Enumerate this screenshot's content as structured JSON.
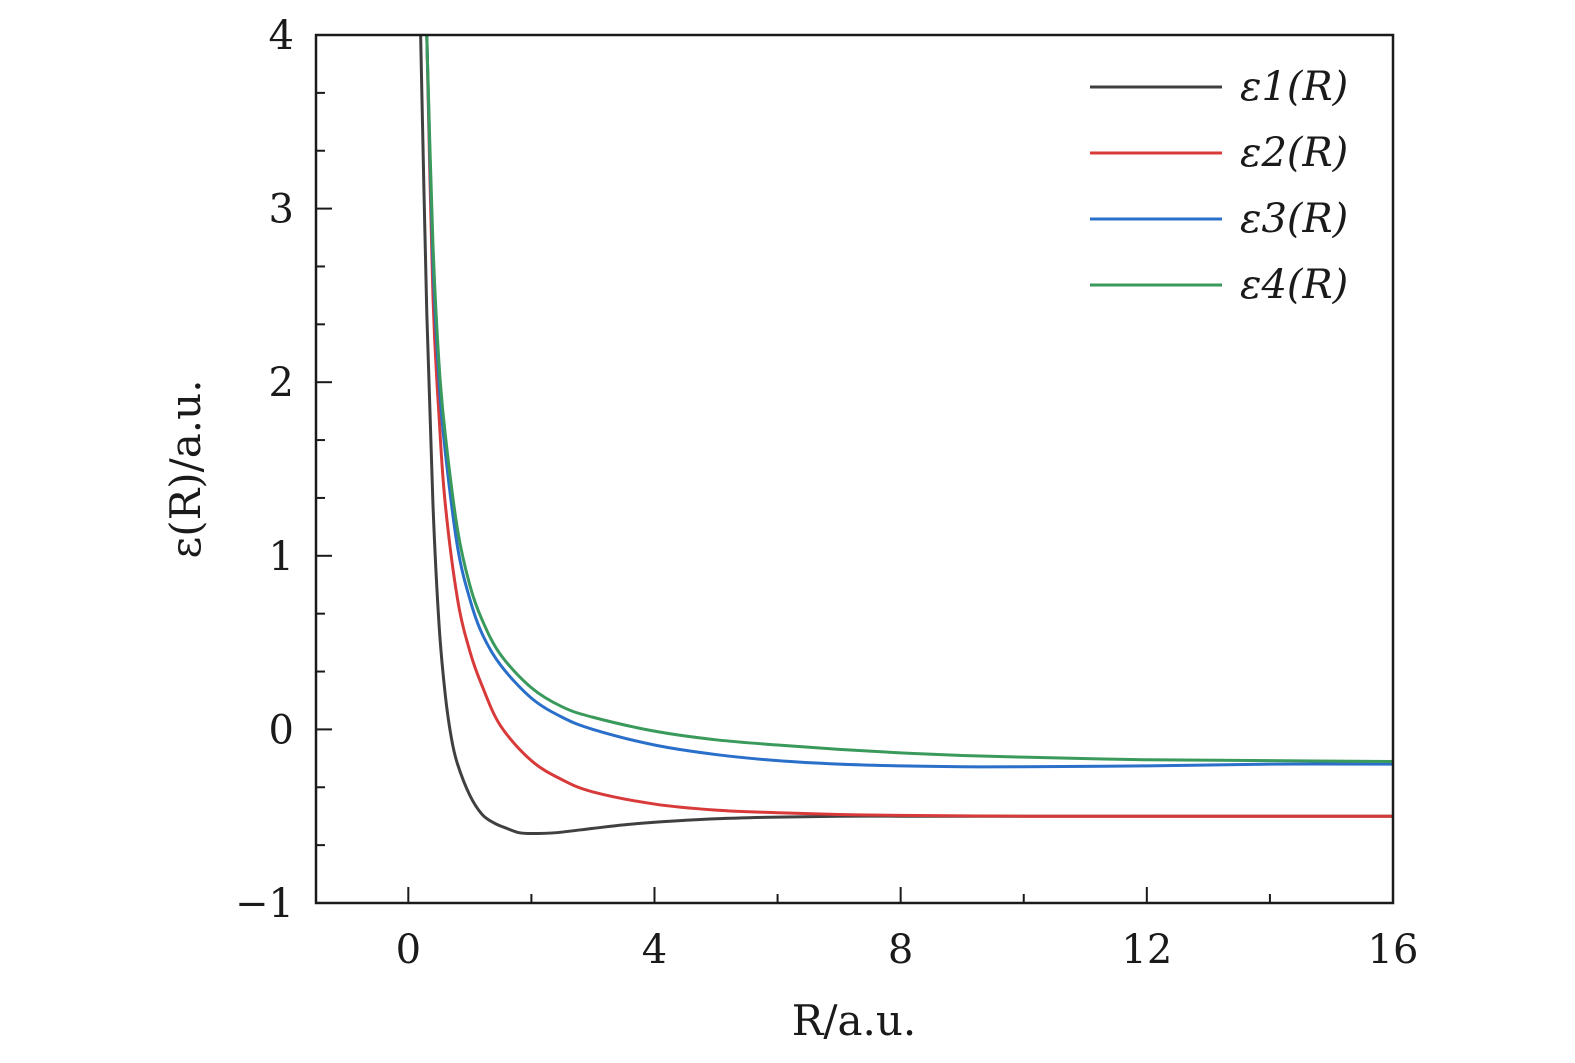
{
  "chart_data": {
    "type": "line",
    "xlabel": "R/a.u.",
    "ylabel": "ε(R)/a.u.",
    "xlim": [
      -1.5,
      16
    ],
    "ylim": [
      -1,
      4
    ],
    "xticks": [
      0,
      4,
      8,
      12,
      16
    ],
    "xtick_labels": [
      "0",
      "4",
      "8",
      "12",
      "16"
    ],
    "yticks": [
      -1,
      0,
      1,
      2,
      3,
      4
    ],
    "ytick_labels": [
      "−1",
      "0",
      "1",
      "2",
      "3",
      "4"
    ],
    "grid": false,
    "legend_position": "top-right",
    "series": [
      {
        "name": "ε1(R)",
        "color": "#404040",
        "x": [
          0.2,
          0.3,
          0.4,
          0.5,
          0.6,
          0.7,
          0.8,
          1.0,
          1.2,
          1.4,
          1.6,
          1.8,
          2.0,
          2.4,
          3.0,
          3.5,
          4.0,
          5.0,
          6.0,
          7.0,
          8.0,
          9.0,
          10.0,
          12.0,
          14.0,
          16.0
        ],
        "y": [
          4.0,
          2.4,
          1.3,
          0.6,
          0.2,
          -0.05,
          -0.2,
          -0.38,
          -0.49,
          -0.54,
          -0.57,
          -0.595,
          -0.6,
          -0.595,
          -0.57,
          -0.55,
          -0.535,
          -0.515,
          -0.505,
          -0.5,
          -0.5,
          -0.5,
          -0.5,
          -0.5,
          -0.5,
          -0.5
        ]
      },
      {
        "name": "ε2(R)",
        "color": "#d83a3a",
        "x": [
          0.3,
          0.4,
          0.5,
          0.6,
          0.8,
          1.0,
          1.2,
          1.5,
          2.0,
          2.5,
          3.0,
          4.0,
          5.0,
          6.0,
          7.0,
          8.0,
          10.0,
          12.0,
          14.0,
          16.0
        ],
        "y": [
          4.0,
          2.5,
          1.8,
          1.3,
          0.75,
          0.45,
          0.25,
          0.02,
          -0.18,
          -0.29,
          -0.36,
          -0.43,
          -0.465,
          -0.48,
          -0.49,
          -0.495,
          -0.5,
          -0.5,
          -0.5,
          -0.5
        ]
      },
      {
        "name": "ε3(R)",
        "color": "#2a6fc9",
        "x": [
          0.3,
          0.4,
          0.5,
          0.6,
          0.8,
          1.0,
          1.2,
          1.5,
          2.0,
          2.5,
          3.0,
          4.0,
          5.0,
          6.0,
          7.0,
          8.0,
          9.0,
          10.0,
          12.0,
          14.0,
          16.0
        ],
        "y": [
          4.0,
          2.7,
          2.0,
          1.6,
          1.05,
          0.75,
          0.55,
          0.37,
          0.18,
          0.07,
          0.0,
          -0.09,
          -0.145,
          -0.18,
          -0.2,
          -0.21,
          -0.215,
          -0.215,
          -0.21,
          -0.2,
          -0.2
        ]
      },
      {
        "name": "ε4(R)",
        "color": "#3a9a5c",
        "x": [
          0.3,
          0.4,
          0.5,
          0.6,
          0.8,
          1.0,
          1.2,
          1.5,
          2.0,
          2.5,
          3.0,
          4.0,
          5.0,
          6.0,
          7.0,
          8.0,
          9.0,
          10.0,
          12.0,
          14.0,
          16.0
        ],
        "y": [
          4.0,
          2.8,
          2.1,
          1.7,
          1.15,
          0.83,
          0.63,
          0.43,
          0.24,
          0.13,
          0.07,
          -0.01,
          -0.06,
          -0.09,
          -0.115,
          -0.135,
          -0.15,
          -0.16,
          -0.175,
          -0.18,
          -0.185
        ]
      }
    ]
  }
}
